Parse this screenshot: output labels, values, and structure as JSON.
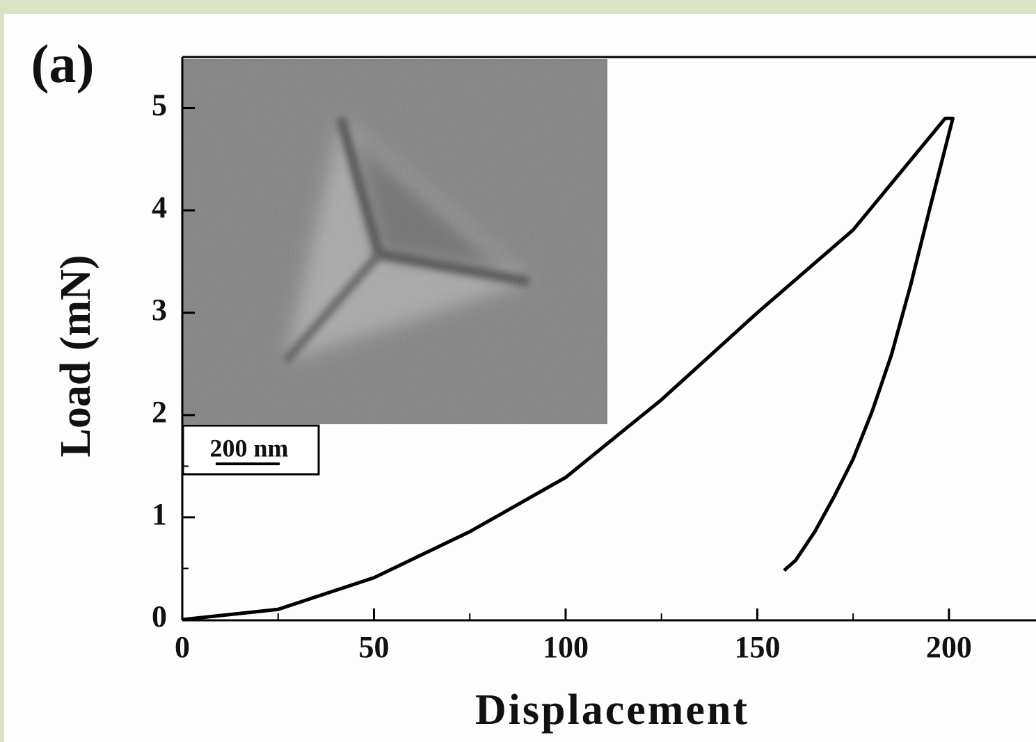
{
  "chart_data": {
    "type": "line",
    "panel_label": "(a)",
    "x_label": "Displacement",
    "y_label": "Load (mN)",
    "x": [
      0,
      25,
      50,
      75,
      100,
      125,
      150,
      175,
      199,
      201,
      195,
      190,
      185,
      180,
      175,
      170,
      165,
      160,
      157
    ],
    "values": [
      0,
      0.1,
      0.41,
      0.86,
      1.39,
      2.15,
      3.0,
      3.81,
      4.9,
      4.9,
      4.02,
      3.27,
      2.59,
      2.04,
      1.57,
      1.2,
      0.86,
      0.58,
      0.48
    ],
    "color": "#000000",
    "xlim": [
      0,
      222.7
    ],
    "ylim": [
      0,
      5.5
    ],
    "xticks": [
      0,
      50,
      100,
      150,
      200
    ],
    "xminorticks": [
      25,
      75,
      125,
      175
    ],
    "yticks": [
      0,
      1,
      2,
      3,
      4,
      5
    ],
    "yminorticks": [
      0.5,
      1.5
    ],
    "inset": {
      "scale_label": "200 nm"
    }
  }
}
